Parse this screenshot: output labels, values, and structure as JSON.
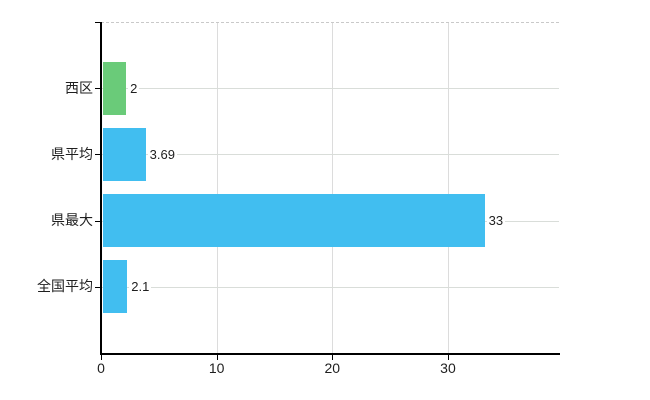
{
  "chart_data": {
    "type": "bar",
    "orientation": "horizontal",
    "categories": [
      "西区",
      "県平均",
      "県最大",
      "全国平均"
    ],
    "values": [
      2,
      3.69,
      33,
      2.1
    ],
    "value_labels": [
      "2",
      "3.69",
      "33",
      "2.1"
    ],
    "bar_colors": [
      "#6acb79",
      "#41bef0",
      "#41bef0",
      "#41bef0"
    ],
    "x_ticks": [
      0,
      10,
      20,
      30
    ],
    "x_tick_labels": [
      "0",
      "10",
      "20",
      "30"
    ],
    "xlim": [
      0,
      39.6
    ],
    "grid": true,
    "legend": "none",
    "title": "",
    "xlabel": "",
    "ylabel": ""
  },
  "colors": {
    "bar_blue": "#41bef0",
    "bar_green": "#6acb79",
    "gridline": "#d9d9d9",
    "top_border_dashed": "#c9c9c9",
    "axis": "#000000",
    "text": "#1f1f1f",
    "background": "#ffffff"
  }
}
